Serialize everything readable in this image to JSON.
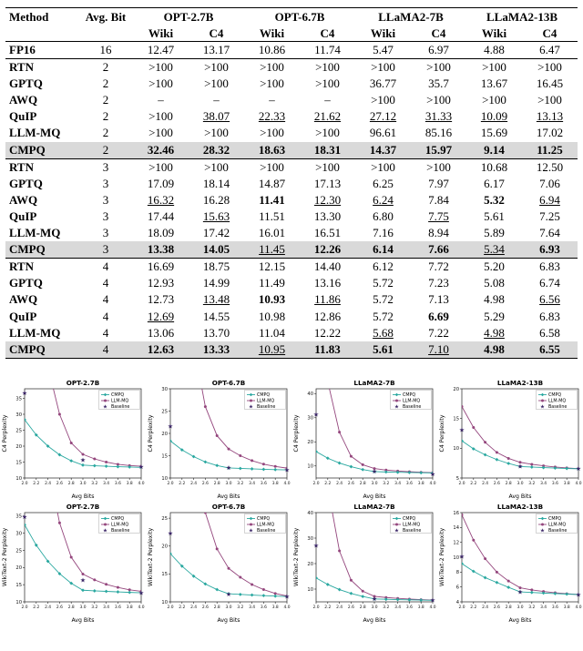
{
  "table": {
    "header_method": "Method",
    "header_avg_bit": "Avg. Bit",
    "col_groups": [
      "OPT-2.7B",
      "OPT-6.7B",
      "LLaMA2-7B",
      "LLaMA2-13B"
    ],
    "sub_headers": [
      "Wiki",
      "C4"
    ],
    "highlight_color": "#d9d9d9",
    "sections": [
      {
        "rows": [
          {
            "m": "FP16",
            "b": "16",
            "v": [
              "12.47",
              "13.17",
              "10.86",
              "11.74",
              "5.47",
              "6.97",
              "4.88",
              "6.47"
            ],
            "bold": [],
            "u": [],
            "hl": false
          }
        ]
      },
      {
        "rows": [
          {
            "m": "RTN",
            "b": "2",
            "v": [
              ">100",
              ">100",
              ">100",
              ">100",
              ">100",
              ">100",
              ">100",
              ">100"
            ],
            "bold": [],
            "u": [],
            "hl": false
          },
          {
            "m": "GPTQ",
            "b": "2",
            "v": [
              ">100",
              ">100",
              ">100",
              ">100",
              "36.77",
              "35.7",
              "13.67",
              "16.45"
            ],
            "bold": [],
            "u": [],
            "hl": false
          },
          {
            "m": "AWQ",
            "b": "2",
            "v": [
              "–",
              "–",
              "–",
              "–",
              ">100",
              ">100",
              ">100",
              ">100"
            ],
            "bold": [],
            "u": [],
            "hl": false
          },
          {
            "m": "QuIP",
            "b": "2",
            "v": [
              ">100",
              "38.07",
              "22.33",
              "21.62",
              "27.12",
              "31.33",
              "10.09",
              "13.13"
            ],
            "bold": [],
            "u": [
              1,
              2,
              3,
              4,
              5,
              6,
              7
            ],
            "hl": false
          },
          {
            "m": "LLM-MQ",
            "b": "2",
            "v": [
              ">100",
              ">100",
              ">100",
              ">100",
              "96.61",
              "85.16",
              "15.69",
              "17.02"
            ],
            "bold": [],
            "u": [],
            "hl": false
          },
          {
            "m": "CMPQ",
            "b": "2",
            "v": [
              "32.46",
              "28.32",
              "18.63",
              "18.31",
              "14.37",
              "15.97",
              "9.14",
              "11.25"
            ],
            "bold": [
              0,
              1,
              2,
              3,
              4,
              5,
              6,
              7
            ],
            "u": [],
            "hl": true
          }
        ]
      },
      {
        "rows": [
          {
            "m": "RTN",
            "b": "3",
            "v": [
              ">100",
              ">100",
              ">100",
              ">100",
              ">100",
              ">100",
              "10.68",
              "12.50"
            ],
            "bold": [],
            "u": [],
            "hl": false
          },
          {
            "m": "GPTQ",
            "b": "3",
            "v": [
              "17.09",
              "18.14",
              "14.87",
              "17.13",
              "6.25",
              "7.97",
              "6.17",
              "7.06"
            ],
            "bold": [],
            "u": [],
            "hl": false
          },
          {
            "m": "AWQ",
            "b": "3",
            "v": [
              "16.32",
              "16.28",
              "11.41",
              "12.30",
              "6.24",
              "7.84",
              "5.32",
              "6.94"
            ],
            "bold": [
              2,
              6
            ],
            "u": [
              0,
              3,
              4,
              7
            ],
            "hl": false
          },
          {
            "m": "QuIP",
            "b": "3",
            "v": [
              "17.44",
              "15.63",
              "11.51",
              "13.30",
              "6.80",
              "7.75",
              "5.61",
              "7.25"
            ],
            "bold": [],
            "u": [
              1,
              5
            ],
            "hl": false
          },
          {
            "m": "LLM-MQ",
            "b": "3",
            "v": [
              "18.09",
              "17.42",
              "16.01",
              "16.51",
              "7.16",
              "8.94",
              "5.89",
              "7.64"
            ],
            "bold": [],
            "u": [],
            "hl": false
          },
          {
            "m": "CMPQ",
            "b": "3",
            "v": [
              "13.38",
              "14.05",
              "11.45",
              "12.26",
              "6.14",
              "7.66",
              "5.34",
              "6.93"
            ],
            "bold": [
              0,
              1,
              3,
              4,
              5,
              7
            ],
            "u": [
              2,
              6
            ],
            "hl": true
          }
        ]
      },
      {
        "rows": [
          {
            "m": "RTN",
            "b": "4",
            "v": [
              "16.69",
              "18.75",
              "12.15",
              "14.40",
              "6.12",
              "7.72",
              "5.20",
              "6.83"
            ],
            "bold": [],
            "u": [],
            "hl": false
          },
          {
            "m": "GPTQ",
            "b": "4",
            "v": [
              "12.93",
              "14.99",
              "11.49",
              "13.16",
              "5.72",
              "7.23",
              "5.08",
              "6.74"
            ],
            "bold": [],
            "u": [],
            "hl": false
          },
          {
            "m": "AWQ",
            "b": "4",
            "v": [
              "12.73",
              "13.48",
              "10.93",
              "11.86",
              "5.72",
              "7.13",
              "4.98",
              "6.56"
            ],
            "bold": [
              2
            ],
            "u": [
              1,
              3,
              7
            ],
            "hl": false
          },
          {
            "m": "QuIP",
            "b": "4",
            "v": [
              "12.69",
              "14.55",
              "10.98",
              "12.86",
              "5.72",
              "6.69",
              "5.29",
              "6.83"
            ],
            "bold": [
              5
            ],
            "u": [
              0
            ],
            "hl": false
          },
          {
            "m": "LLM-MQ",
            "b": "4",
            "v": [
              "13.06",
              "13.70",
              "11.04",
              "12.22",
              "5.68",
              "7.22",
              "4.98",
              "6.58"
            ],
            "bold": [],
            "u": [
              4,
              6
            ],
            "hl": false
          },
          {
            "m": "CMPQ",
            "b": "4",
            "v": [
              "12.63",
              "13.33",
              "10.95",
              "11.83",
              "5.61",
              "7.10",
              "4.98",
              "6.55"
            ],
            "bold": [
              0,
              1,
              3,
              4,
              6,
              7
            ],
            "u": [
              2,
              5
            ],
            "hl": true
          }
        ]
      }
    ]
  },
  "chart_data": {
    "type": "line",
    "xlabel": "Avg Bits",
    "x": [
      2.0,
      2.2,
      2.4,
      2.6,
      2.8,
      3.0,
      3.2,
      3.4,
      3.6,
      3.8,
      4.0
    ],
    "legend": [
      "CMPQ",
      "LLM-MQ",
      "Baseline"
    ],
    "colors": {
      "cmpq": "#2aa8a0",
      "llmmq": "#94467d",
      "baseline": "#3a2466"
    },
    "panels": [
      {
        "title": "OPT-2.7B",
        "ylabel": "C4 Perplexity",
        "ylim": [
          10,
          38
        ],
        "yticks": [
          10,
          15,
          20,
          25,
          30,
          35
        ],
        "cmpq": [
          28.32,
          23.5,
          20.0,
          17.3,
          15.4,
          14.05,
          13.85,
          13.7,
          13.55,
          13.45,
          13.33
        ],
        "llmmq": [
          120,
          75,
          45,
          30,
          21,
          17.42,
          16.0,
          15.0,
          14.3,
          13.9,
          13.7
        ],
        "baseline": [
          [
            2.0,
            38.07
          ],
          [
            3.0,
            15.63
          ],
          [
            4.0,
            13.48
          ]
        ]
      },
      {
        "title": "OPT-6.7B",
        "ylabel": "C4 Perplexity",
        "ylim": [
          10,
          30
        ],
        "yticks": [
          10,
          15,
          20,
          25,
          30
        ],
        "cmpq": [
          18.31,
          16.3,
          14.8,
          13.6,
          12.8,
          12.26,
          12.15,
          12.05,
          11.95,
          11.88,
          11.83
        ],
        "llmmq": [
          120,
          70,
          40,
          26,
          19.5,
          16.51,
          15.0,
          13.9,
          13.1,
          12.6,
          12.22
        ],
        "baseline": [
          [
            2.0,
            21.62
          ],
          [
            3.0,
            12.3
          ],
          [
            4.0,
            11.86
          ]
        ]
      },
      {
        "title": "LLaMA2-7B",
        "ylabel": "C4 Perplexity",
        "ylim": [
          5,
          42
        ],
        "yticks": [
          10,
          20,
          30,
          40
        ],
        "cmpq": [
          15.97,
          13.2,
          11.2,
          9.7,
          8.5,
          7.66,
          7.5,
          7.38,
          7.27,
          7.18,
          7.1
        ],
        "llmmq": [
          85.16,
          45,
          24,
          14,
          10.5,
          8.94,
          8.3,
          7.9,
          7.6,
          7.38,
          7.22
        ],
        "baseline": [
          [
            2.0,
            31.33
          ],
          [
            3.0,
            7.75
          ],
          [
            4.0,
            6.69
          ]
        ]
      },
      {
        "title": "LLaMA2-13B",
        "ylabel": "C4 Perplexity",
        "ylim": [
          5,
          20
        ],
        "yticks": [
          5,
          10,
          15,
          20
        ],
        "cmpq": [
          11.25,
          9.9,
          8.9,
          8.1,
          7.45,
          6.93,
          6.84,
          6.75,
          6.67,
          6.6,
          6.55
        ],
        "llmmq": [
          17.02,
          13.5,
          11.0,
          9.3,
          8.3,
          7.64,
          7.3,
          7.05,
          6.85,
          6.7,
          6.58
        ],
        "baseline": [
          [
            2.0,
            13.13
          ],
          [
            3.0,
            6.94
          ],
          [
            4.0,
            6.56
          ]
        ]
      },
      {
        "title": "OPT-2.7B",
        "ylabel": "WikiText-2 Perplexity",
        "ylim": [
          10,
          36
        ],
        "yticks": [
          10,
          15,
          20,
          25,
          30,
          35
        ],
        "cmpq": [
          32.46,
          26.5,
          21.8,
          18.2,
          15.4,
          13.38,
          13.2,
          13.05,
          12.9,
          12.75,
          12.63
        ],
        "llmmq": [
          120,
          80,
          50,
          33,
          23,
          18.09,
          16.4,
          15.1,
          14.2,
          13.5,
          13.06
        ],
        "baseline": [
          [
            2.0,
            100
          ],
          [
            3.0,
            16.32
          ],
          [
            4.0,
            12.69
          ]
        ]
      },
      {
        "title": "OPT-6.7B",
        "ylabel": "WikiText-2 Perplexity",
        "ylim": [
          10,
          26
        ],
        "yticks": [
          10,
          15,
          20,
          25
        ],
        "cmpq": [
          18.63,
          16.4,
          14.6,
          13.2,
          12.2,
          11.45,
          11.33,
          11.22,
          11.12,
          11.03,
          10.95
        ],
        "llmmq": [
          120,
          70,
          40,
          26,
          19.5,
          16.01,
          14.4,
          13.1,
          12.2,
          11.5,
          11.04
        ],
        "baseline": [
          [
            2.0,
            22.33
          ],
          [
            3.0,
            11.41
          ],
          [
            4.0,
            10.93
          ]
        ]
      },
      {
        "title": "LLaMA2-7B",
        "ylabel": "WikiText-2 Perplexity",
        "ylim": [
          5,
          40
        ],
        "yticks": [
          10,
          20,
          30,
          40
        ],
        "cmpq": [
          14.37,
          11.8,
          9.8,
          8.3,
          7.1,
          6.14,
          6.0,
          5.88,
          5.78,
          5.69,
          5.61
        ],
        "llmmq": [
          96.61,
          50,
          25,
          13.5,
          9.2,
          7.16,
          6.7,
          6.35,
          6.08,
          5.86,
          5.68
        ],
        "baseline": [
          [
            2.0,
            27.12
          ],
          [
            3.0,
            6.24
          ],
          [
            4.0,
            5.72
          ]
        ]
      },
      {
        "title": "LLaMA2-13B",
        "ylabel": "WikiText-2 Perplexity",
        "ylim": [
          4,
          16
        ],
        "yticks": [
          4,
          6,
          8,
          10,
          12,
          14,
          16
        ],
        "cmpq": [
          9.14,
          8.1,
          7.25,
          6.6,
          5.95,
          5.34,
          5.26,
          5.18,
          5.11,
          5.04,
          4.98
        ],
        "llmmq": [
          15.69,
          12.3,
          9.8,
          8.0,
          6.8,
          5.89,
          5.6,
          5.4,
          5.22,
          5.09,
          4.98
        ],
        "baseline": [
          [
            2.0,
            10.09
          ],
          [
            3.0,
            5.32
          ],
          [
            4.0,
            4.98
          ]
        ]
      }
    ]
  }
}
